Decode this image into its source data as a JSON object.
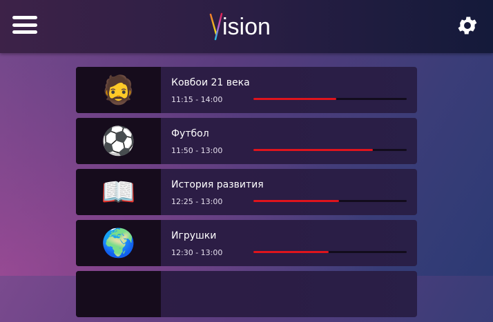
{
  "header": {
    "logo_text": "ision",
    "logo_letter": "V",
    "menu_icon": "hamburger-icon",
    "settings_icon": "gear-icon"
  },
  "accent_color": "#e0141c",
  "programs": [
    {
      "title": "Ковбои 21 века",
      "time": "11:15 - 14:00",
      "progress": 0.54,
      "thumb": "🧔"
    },
    {
      "title": "Футбол",
      "time": "11:50 - 13:00",
      "progress": 0.78,
      "thumb": "⚽"
    },
    {
      "title": "История развития",
      "time": "12:25 - 13:00",
      "progress": 0.56,
      "thumb": "📖"
    },
    {
      "title": "Игрушки",
      "time": "12:30 - 13:00",
      "progress": 0.49,
      "thumb": "🌍"
    },
    {
      "title": "",
      "time": "",
      "progress": 0,
      "thumb": ""
    }
  ]
}
